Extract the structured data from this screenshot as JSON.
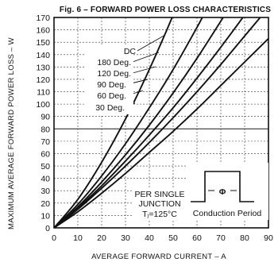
{
  "chart_data": {
    "type": "line",
    "title": "Fig. 6 – FORWARD POWER LOSS CHARACTERISTICS",
    "xlabel": "AVERAGE FORWARD CURRENT – A",
    "ylabel": "MAXIMUM AVERAGE FORWARD POWER LOSS – W",
    "xlim": [
      0,
      90
    ],
    "ylim": [
      0,
      170
    ],
    "xticks": [
      "0",
      "10",
      "20",
      "30",
      "40",
      "50",
      "60",
      "70",
      "80",
      "90"
    ],
    "yticks": [
      "0",
      "10",
      "20",
      "30",
      "40",
      "50",
      "60",
      "70",
      "80",
      "90",
      "100",
      "110",
      "120",
      "130",
      "140",
      "150",
      "160",
      "170"
    ],
    "grid": true,
    "series": [
      {
        "name": "DC",
        "x": [
          0,
          10,
          20,
          30,
          40,
          50,
          60,
          70,
          80,
          90
        ],
        "y": [
          0,
          13,
          28,
          44,
          61,
          78,
          96,
          115,
          134,
          153
        ]
      },
      {
        "name": "180 Deg.",
        "x": [
          0,
          10,
          20,
          30,
          40,
          50,
          60,
          70,
          80,
          90
        ],
        "y": [
          0,
          15,
          32,
          50,
          69,
          89,
          110,
          132,
          155,
          178
        ]
      },
      {
        "name": "120 Deg.",
        "x": [
          0,
          10,
          20,
          30,
          40,
          50,
          60,
          70,
          80,
          90
        ],
        "y": [
          0,
          16,
          34,
          54,
          75,
          97,
          121,
          146,
          172,
          199
        ]
      },
      {
        "name": "90 Deg.",
        "x": [
          0,
          10,
          20,
          30,
          40,
          50,
          60,
          70,
          80
        ],
        "y": [
          0,
          17,
          37,
          59,
          83,
          109,
          137,
          167,
          198
        ]
      },
      {
        "name": "60 Deg.",
        "x": [
          0,
          10,
          20,
          30,
          40,
          50,
          60,
          70
        ],
        "y": [
          0,
          19,
          42,
          68,
          97,
          128,
          162,
          198
        ]
      },
      {
        "name": "30 Deg.",
        "x": [
          0,
          10,
          20,
          30,
          40,
          50,
          60
        ],
        "y": [
          0,
          23,
          53,
          88,
          128,
          172,
          220
        ]
      }
    ],
    "annotations": {
      "legend_lines": [
        "DC",
        "180 Deg.",
        "120 Deg.",
        "90 Deg.",
        "60 Deg.",
        "30 Deg."
      ],
      "junction_lines": [
        "PER SINGLE",
        "JUNCTION",
        "Tⱼ=125°C"
      ],
      "inset_symbol": "Φ",
      "inset_label": "Conduction Period"
    }
  }
}
